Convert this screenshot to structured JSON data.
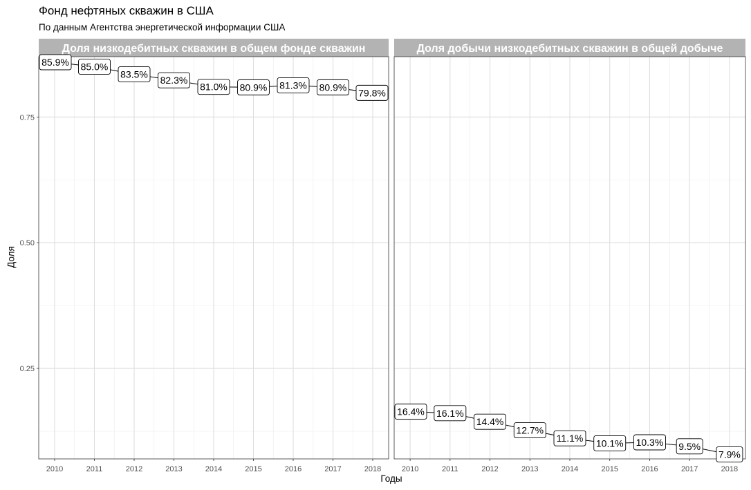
{
  "title": "Фонд нефтяных скважин в США",
  "subtitle": "По данным Агентства энергетической информации США",
  "chart_data": {
    "type": "line",
    "xlabel": "Годы",
    "ylabel": "Доля",
    "x": [
      2010,
      2011,
      2012,
      2013,
      2014,
      2015,
      2016,
      2017,
      2018
    ],
    "ylim": [
      0.07,
      0.87
    ],
    "yticks": [
      0.25,
      0.5,
      0.75
    ],
    "ytick_labels": [
      "0.25",
      "0.50",
      "0.75"
    ],
    "grid": true,
    "facets": [
      {
        "title": "Доля низкодебитных скважин в общем фонде скважин",
        "values": [
          0.859,
          0.85,
          0.835,
          0.823,
          0.81,
          0.809,
          0.813,
          0.809,
          0.798
        ],
        "labels": [
          "85.9%",
          "85.0%",
          "83.5%",
          "82.3%",
          "81.0%",
          "80.9%",
          "81.3%",
          "80.9%",
          "79.8%"
        ]
      },
      {
        "title": "Доля добычи низкодебитных скважин в общей добыче",
        "values": [
          0.164,
          0.161,
          0.144,
          0.127,
          0.111,
          0.101,
          0.103,
          0.095,
          0.079
        ],
        "labels": [
          "16.4%",
          "16.1%",
          "14.4%",
          "12.7%",
          "11.1%",
          "10.1%",
          "10.3%",
          "9.5%",
          "7.9%"
        ]
      }
    ]
  }
}
